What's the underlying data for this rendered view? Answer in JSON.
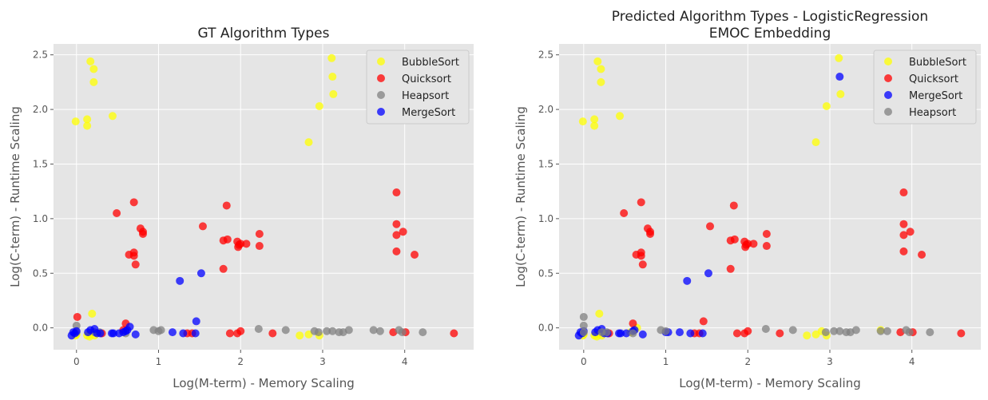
{
  "chart_data": [
    {
      "type": "scatter",
      "title": "GT Algorithm Types",
      "xlabel": "Log(M-term) - Memory Scaling",
      "ylabel": "Log(C-term) - Runtime Scaling",
      "xlim": [
        -0.28,
        4.84
      ],
      "ylim": [
        -0.2,
        2.6
      ],
      "xticks": [
        0,
        1,
        2,
        3,
        4
      ],
      "yticks": [
        0.0,
        0.5,
        1.0,
        1.5,
        2.0,
        2.5
      ],
      "ytick_labels": [
        "0.0",
        "0.5",
        "1.0",
        "1.5",
        "2.0",
        "2.5"
      ],
      "grid": true,
      "legend_position": "top-right",
      "series": [
        {
          "name": "BubbleSort",
          "color": "#ffff00",
          "points": [
            [
              -0.01,
              1.89
            ],
            [
              0.13,
              1.91
            ],
            [
              0.13,
              1.85
            ],
            [
              0.17,
              2.44
            ],
            [
              0.21,
              2.37
            ],
            [
              0.21,
              2.25
            ],
            [
              0.44,
              1.94
            ],
            [
              0.19,
              0.13
            ],
            [
              2.83,
              1.7
            ],
            [
              2.96,
              2.03
            ],
            [
              3.11,
              2.47
            ],
            [
              3.12,
              2.3
            ],
            [
              3.13,
              2.14
            ],
            [
              -0.01,
              -0.07
            ],
            [
              0.0,
              -0.06
            ],
            [
              0.13,
              -0.07
            ],
            [
              0.16,
              -0.08
            ],
            [
              0.18,
              -0.06
            ],
            [
              0.2,
              -0.05
            ],
            [
              0.22,
              -0.07
            ],
            [
              2.72,
              -0.07
            ],
            [
              2.83,
              -0.06
            ],
            [
              2.96,
              -0.07
            ]
          ]
        },
        {
          "name": "Quicksort",
          "color": "#ff0000",
          "points": [
            [
              0.01,
              0.1
            ],
            [
              0.49,
              1.05
            ],
            [
              0.6,
              0.04
            ],
            [
              0.64,
              0.67
            ],
            [
              0.7,
              0.69
            ],
            [
              0.7,
              0.66
            ],
            [
              0.7,
              1.15
            ],
            [
              0.72,
              0.58
            ],
            [
              0.78,
              0.91
            ],
            [
              0.81,
              0.88
            ],
            [
              0.81,
              0.86
            ],
            [
              1.54,
              0.93
            ],
            [
              1.79,
              0.54
            ],
            [
              1.79,
              0.8
            ],
            [
              1.84,
              0.81
            ],
            [
              1.83,
              1.12
            ],
            [
              1.96,
              0.79
            ],
            [
              1.97,
              0.74
            ],
            [
              1.98,
              0.76
            ],
            [
              2.0,
              0.77
            ],
            [
              2.07,
              0.77
            ],
            [
              2.23,
              0.86
            ],
            [
              2.23,
              0.75
            ],
            [
              3.9,
              1.24
            ],
            [
              3.9,
              0.95
            ],
            [
              3.9,
              0.85
            ],
            [
              3.9,
              0.7
            ],
            [
              3.98,
              0.88
            ],
            [
              4.12,
              0.67
            ],
            [
              0.57,
              -0.02
            ],
            [
              0.31,
              -0.05
            ],
            [
              1.35,
              -0.05
            ],
            [
              1.41,
              -0.05
            ],
            [
              1.87,
              -0.05
            ],
            [
              1.96,
              -0.05
            ],
            [
              2.0,
              -0.03
            ],
            [
              2.39,
              -0.05
            ],
            [
              3.86,
              -0.04
            ],
            [
              4.01,
              -0.04
            ],
            [
              4.6,
              -0.05
            ]
          ]
        },
        {
          "name": "Heapsort",
          "color": "#808080",
          "points": [
            [
              0.0,
              0.02
            ],
            [
              0.0,
              -0.04
            ],
            [
              0.22,
              -0.04
            ],
            [
              0.28,
              -0.04
            ],
            [
              0.6,
              -0.05
            ],
            [
              0.94,
              -0.02
            ],
            [
              1.0,
              -0.03
            ],
            [
              1.03,
              -0.02
            ],
            [
              2.22,
              -0.01
            ],
            [
              2.55,
              -0.02
            ],
            [
              2.9,
              -0.03
            ],
            [
              2.95,
              -0.04
            ],
            [
              3.05,
              -0.03
            ],
            [
              3.12,
              -0.03
            ],
            [
              3.2,
              -0.04
            ],
            [
              3.25,
              -0.04
            ],
            [
              3.32,
              -0.02
            ],
            [
              3.62,
              -0.02
            ],
            [
              3.7,
              -0.03
            ],
            [
              3.93,
              -0.02
            ],
            [
              3.97,
              -0.04
            ],
            [
              4.22,
              -0.04
            ]
          ]
        },
        {
          "name": "MergeSort",
          "color": "#0000ff",
          "points": [
            [
              -0.06,
              -0.07
            ],
            [
              -0.04,
              -0.04
            ],
            [
              -0.02,
              -0.05
            ],
            [
              0.0,
              -0.03
            ],
            [
              0.14,
              -0.04
            ],
            [
              0.17,
              -0.02
            ],
            [
              0.22,
              -0.01
            ],
            [
              0.25,
              -0.05
            ],
            [
              0.29,
              -0.05
            ],
            [
              0.43,
              -0.05
            ],
            [
              0.45,
              -0.05
            ],
            [
              0.52,
              -0.05
            ],
            [
              0.57,
              -0.04
            ],
            [
              0.6,
              -0.03
            ],
            [
              0.62,
              -0.02
            ],
            [
              0.65,
              0.01
            ],
            [
              0.72,
              -0.06
            ],
            [
              1.17,
              -0.04
            ],
            [
              1.3,
              -0.05
            ],
            [
              1.45,
              -0.05
            ],
            [
              1.46,
              0.06
            ],
            [
              1.26,
              0.43
            ],
            [
              1.52,
              0.5
            ]
          ]
        }
      ]
    },
    {
      "type": "scatter",
      "title": "Predicted Algorithm Types - LogisticRegression\nEMOC Embedding",
      "xlabel": "Log(M-term) - Memory Scaling",
      "ylabel": "Log(C-term) - Runtime Scaling",
      "xlim": [
        -0.3,
        4.84
      ],
      "ylim": [
        -0.2,
        2.6
      ],
      "xticks": [
        0,
        1,
        2,
        3,
        4
      ],
      "yticks": [
        0.0,
        0.5,
        1.0,
        1.5,
        2.0,
        2.5
      ],
      "ytick_labels": [
        "0.0",
        "0.5",
        "1.0",
        "1.5",
        "2.0",
        "2.5"
      ],
      "grid": true,
      "legend_position": "top-right",
      "series": [
        {
          "name": "BubbleSort",
          "color": "#ffff00",
          "points": [
            [
              -0.01,
              1.89
            ],
            [
              0.13,
              1.91
            ],
            [
              0.13,
              1.85
            ],
            [
              0.17,
              2.44
            ],
            [
              0.21,
              2.37
            ],
            [
              0.21,
              2.25
            ],
            [
              0.44,
              1.94
            ],
            [
              0.19,
              0.13
            ],
            [
              2.83,
              1.7
            ],
            [
              2.96,
              2.03
            ],
            [
              3.11,
              2.47
            ],
            [
              3.13,
              2.14
            ],
            [
              -0.01,
              -0.07
            ],
            [
              0.0,
              -0.06
            ],
            [
              0.13,
              -0.07
            ],
            [
              0.16,
              -0.08
            ],
            [
              0.18,
              -0.06
            ],
            [
              0.2,
              -0.05
            ],
            [
              0.22,
              -0.07
            ],
            [
              0.65,
              0.0
            ],
            [
              0.57,
              -0.04
            ],
            [
              2.72,
              -0.07
            ],
            [
              2.83,
              -0.06
            ],
            [
              2.96,
              -0.07
            ],
            [
              2.9,
              -0.03
            ],
            [
              3.62,
              -0.02
            ]
          ]
        },
        {
          "name": "Quicksort",
          "color": "#ff0000",
          "points": [
            [
              0.49,
              1.05
            ],
            [
              0.6,
              0.04
            ],
            [
              0.64,
              0.67
            ],
            [
              0.7,
              0.69
            ],
            [
              0.7,
              0.66
            ],
            [
              0.7,
              1.15
            ],
            [
              0.72,
              0.58
            ],
            [
              0.78,
              0.91
            ],
            [
              0.81,
              0.88
            ],
            [
              0.81,
              0.86
            ],
            [
              1.54,
              0.93
            ],
            [
              1.79,
              0.54
            ],
            [
              1.79,
              0.8
            ],
            [
              1.84,
              0.81
            ],
            [
              1.83,
              1.12
            ],
            [
              1.96,
              0.79
            ],
            [
              1.97,
              0.74
            ],
            [
              1.98,
              0.76
            ],
            [
              2.0,
              0.77
            ],
            [
              2.07,
              0.77
            ],
            [
              2.23,
              0.86
            ],
            [
              2.23,
              0.75
            ],
            [
              3.9,
              1.24
            ],
            [
              3.9,
              0.95
            ],
            [
              3.9,
              0.85
            ],
            [
              3.9,
              0.7
            ],
            [
              3.98,
              0.88
            ],
            [
              4.12,
              0.67
            ],
            [
              0.31,
              -0.05
            ],
            [
              1.35,
              -0.05
            ],
            [
              1.41,
              -0.05
            ],
            [
              1.46,
              0.06
            ],
            [
              1.87,
              -0.05
            ],
            [
              1.96,
              -0.05
            ],
            [
              2.0,
              -0.03
            ],
            [
              2.39,
              -0.05
            ],
            [
              3.86,
              -0.04
            ],
            [
              4.01,
              -0.04
            ],
            [
              4.6,
              -0.05
            ]
          ]
        },
        {
          "name": "MergeSort",
          "color": "#0000ff",
          "points": [
            [
              -0.06,
              -0.07
            ],
            [
              -0.04,
              -0.04
            ],
            [
              -0.02,
              -0.05
            ],
            [
              0.0,
              -0.03
            ],
            [
              0.14,
              -0.04
            ],
            [
              0.17,
              -0.02
            ],
            [
              0.22,
              -0.01
            ],
            [
              0.25,
              -0.05
            ],
            [
              0.29,
              -0.05
            ],
            [
              0.43,
              -0.05
            ],
            [
              0.45,
              -0.05
            ],
            [
              0.52,
              -0.05
            ],
            [
              0.6,
              -0.03
            ],
            [
              0.62,
              -0.02
            ],
            [
              0.72,
              -0.06
            ],
            [
              1.0,
              -0.04
            ],
            [
              1.03,
              -0.04
            ],
            [
              1.17,
              -0.04
            ],
            [
              1.3,
              -0.05
            ],
            [
              1.45,
              -0.05
            ],
            [
              1.26,
              0.43
            ],
            [
              1.52,
              0.5
            ],
            [
              3.12,
              2.3
            ]
          ]
        },
        {
          "name": "Heapsort",
          "color": "#808080",
          "points": [
            [
              0.0,
              0.1
            ],
            [
              0.0,
              0.02
            ],
            [
              0.0,
              -0.04
            ],
            [
              0.22,
              -0.04
            ],
            [
              0.28,
              -0.04
            ],
            [
              0.6,
              -0.05
            ],
            [
              0.94,
              -0.02
            ],
            [
              1.0,
              -0.03
            ],
            [
              2.22,
              -0.01
            ],
            [
              2.55,
              -0.02
            ],
            [
              2.95,
              -0.04
            ],
            [
              3.05,
              -0.03
            ],
            [
              3.12,
              -0.03
            ],
            [
              3.2,
              -0.04
            ],
            [
              3.25,
              -0.04
            ],
            [
              3.32,
              -0.02
            ],
            [
              3.62,
              -0.03
            ],
            [
              3.7,
              -0.03
            ],
            [
              3.93,
              -0.02
            ],
            [
              3.97,
              -0.04
            ],
            [
              4.22,
              -0.04
            ]
          ]
        }
      ]
    }
  ]
}
